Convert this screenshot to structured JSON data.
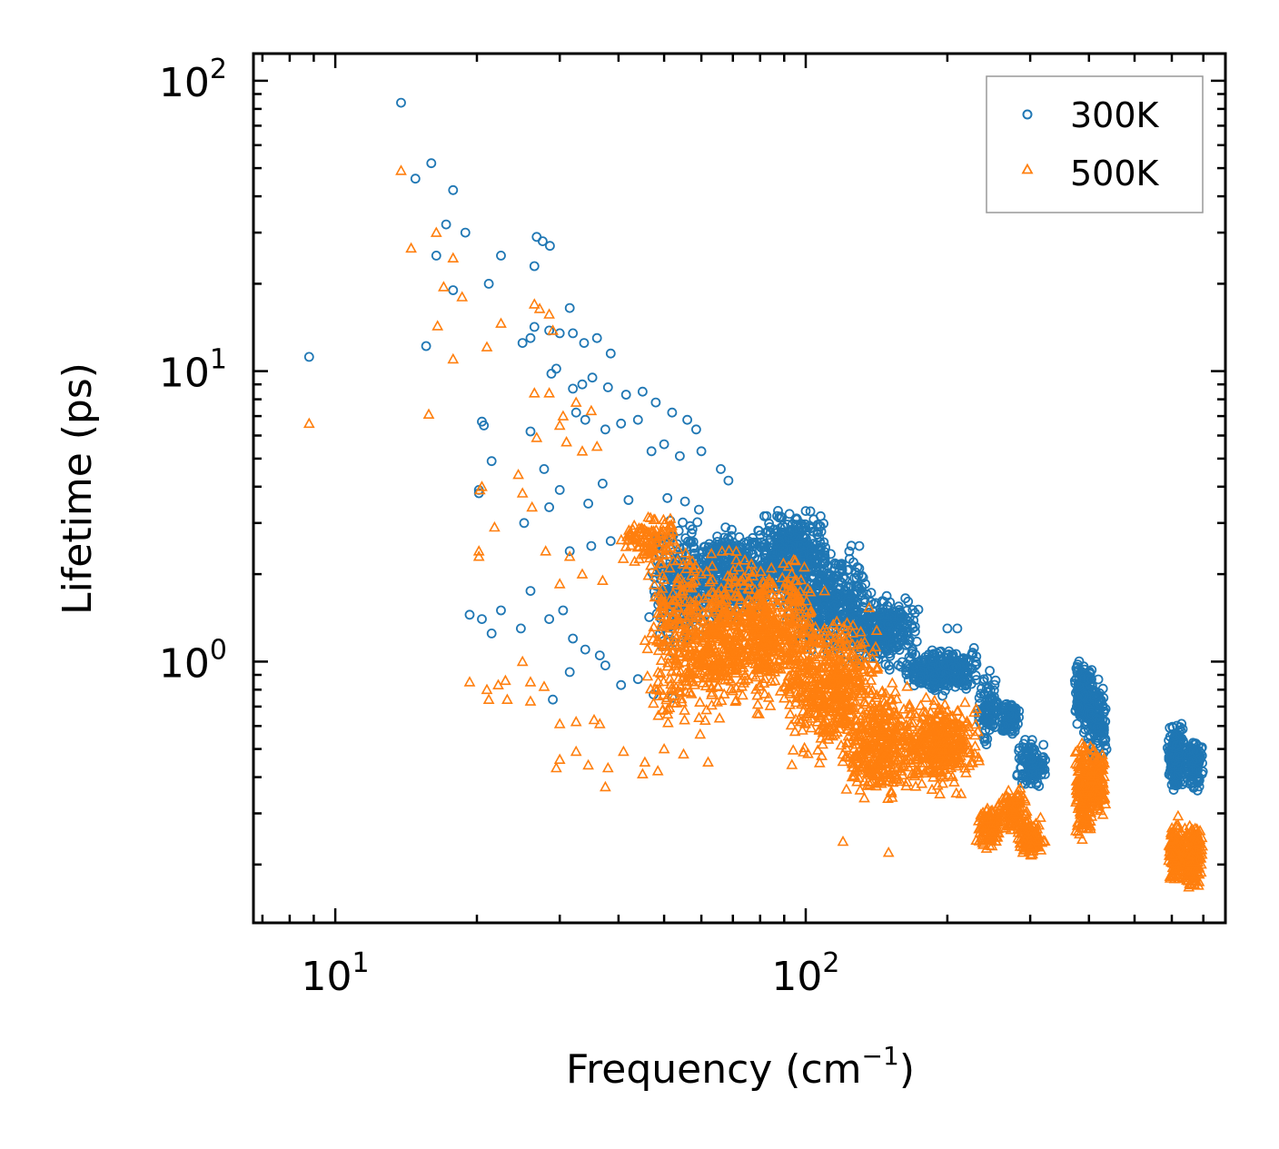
{
  "chart_data": {
    "type": "scatter",
    "title": "",
    "xlabel": "Frequency (cm",
    "xlabel_sup": "−1",
    "xlabel_suffix": ")",
    "ylabel": "Lifetime (ps)",
    "xscale": "log",
    "yscale": "log",
    "xlim": [
      6.7,
      780
    ],
    "ylim": [
      0.126,
      124
    ],
    "xticks": [
      {
        "value": 10,
        "base": "10",
        "exp": "1"
      },
      {
        "value": 100,
        "base": "10",
        "exp": "2"
      }
    ],
    "yticks": [
      {
        "value": 1,
        "base": "10",
        "exp": "0"
      },
      {
        "value": 10,
        "base": "10",
        "exp": "1"
      },
      {
        "value": 100,
        "base": "10",
        "exp": "2"
      }
    ],
    "grid": false,
    "legend_position": "top-right",
    "colors": {
      "s300": "#1f77b4",
      "s500": "#ff7f0e"
    },
    "series": [
      {
        "name": "300K",
        "marker": "circle",
        "color": "#1f77b4",
        "points": [
          [
            8.8,
            11.2
          ],
          [
            13.8,
            84
          ],
          [
            14.8,
            46
          ],
          [
            16.0,
            52
          ],
          [
            17.2,
            32
          ],
          [
            17.8,
            42
          ],
          [
            18.9,
            30
          ],
          [
            16.4,
            25
          ],
          [
            15.6,
            12.2
          ],
          [
            17.8,
            19
          ],
          [
            21.2,
            20
          ],
          [
            22.5,
            25
          ],
          [
            26.5,
            23
          ],
          [
            26.8,
            29
          ],
          [
            27.6,
            28
          ],
          [
            28.6,
            27
          ],
          [
            20.5,
            6.7
          ],
          [
            20.7,
            6.5
          ],
          [
            21.5,
            4.9
          ],
          [
            20.2,
            3.9
          ],
          [
            20.2,
            3.8
          ],
          [
            25.0,
            12.5
          ],
          [
            26.0,
            13
          ],
          [
            26.5,
            14.2
          ],
          [
            28.5,
            13.8
          ],
          [
            30.0,
            13.5
          ],
          [
            31.5,
            16.5
          ],
          [
            32.0,
            13.5
          ],
          [
            33.8,
            12.5
          ],
          [
            36.0,
            13.0
          ],
          [
            38.5,
            11.5
          ],
          [
            29.5,
            10.2
          ],
          [
            28.8,
            9.8
          ],
          [
            32.0,
            8.7
          ],
          [
            33.5,
            9.0
          ],
          [
            35.2,
            9.5
          ],
          [
            38.0,
            8.8
          ],
          [
            41.5,
            8.3
          ],
          [
            45.0,
            8.5
          ],
          [
            32.5,
            7.2
          ],
          [
            34.0,
            6.8
          ],
          [
            37.5,
            6.3
          ],
          [
            40.5,
            6.6
          ],
          [
            44.0,
            6.8
          ],
          [
            48.0,
            7.8
          ],
          [
            52.0,
            7.2
          ],
          [
            56.0,
            6.8
          ],
          [
            58.5,
            6.3
          ],
          [
            47.0,
            5.3
          ],
          [
            50.0,
            5.6
          ],
          [
            54.0,
            5.1
          ],
          [
            60.0,
            5.3
          ],
          [
            66.0,
            4.6
          ],
          [
            68.5,
            4.2
          ],
          [
            26.0,
            6.2
          ],
          [
            25.2,
            3.0
          ],
          [
            27.8,
            4.6
          ],
          [
            28.5,
            3.4
          ],
          [
            30.0,
            3.9
          ],
          [
            34.5,
            3.5
          ],
          [
            37.0,
            4.1
          ],
          [
            42.0,
            3.6
          ],
          [
            31.5,
            2.4
          ],
          [
            35.0,
            2.5
          ],
          [
            38.5,
            2.6
          ],
          [
            28.5,
            1.4
          ],
          [
            30.5,
            1.5
          ],
          [
            32.0,
            1.2
          ],
          [
            34.0,
            1.1
          ],
          [
            36.5,
            1.05
          ],
          [
            19.3,
            1.45
          ],
          [
            20.5,
            1.4
          ],
          [
            21.5,
            1.25
          ],
          [
            22.5,
            1.5
          ],
          [
            24.8,
            1.3
          ],
          [
            26.0,
            1.75
          ],
          [
            29.0,
            0.74
          ],
          [
            31.5,
            0.92
          ],
          [
            37.5,
            0.97
          ],
          [
            40.5,
            0.83
          ],
          [
            44.0,
            0.87
          ],
          [
            47.5,
            0.77
          ],
          [
            52.0,
            0.75
          ],
          [
            100,
            3.3
          ],
          [
            130,
            2.5
          ],
          [
            200,
            1.3
          ],
          [
            210,
            1.3
          ],
          [
            230,
            1.0
          ]
        ],
        "clusters": [
          {
            "x": [
              46,
              62
            ],
            "y": [
              0.9,
              3.8
            ],
            "n": 220
          },
          {
            "x": [
              55,
              85
            ],
            "y": [
              1.2,
              3.2
            ],
            "n": 380
          },
          {
            "x": [
              75,
              115
            ],
            "y": [
              1.5,
              3.5
            ],
            "n": 450
          },
          {
            "x": [
              90,
              140
            ],
            "y": [
              1.0,
              2.6
            ],
            "n": 380
          },
          {
            "x": [
              120,
              175
            ],
            "y": [
              0.9,
              1.8
            ],
            "n": 300
          },
          {
            "x": [
              160,
              235
            ],
            "y": [
              0.75,
              1.15
            ],
            "n": 280
          },
          {
            "x": [
              230,
              260
            ],
            "y": [
              0.5,
              0.95
            ],
            "n": 90
          },
          {
            "x": [
              258,
              285
            ],
            "y": [
              0.55,
              0.75
            ],
            "n": 90
          },
          {
            "x": [
              280,
              325
            ],
            "y": [
              0.35,
              0.56
            ],
            "n": 120
          },
          {
            "x": [
              370,
              410
            ],
            "y": [
              0.55,
              1.08
            ],
            "n": 170
          },
          {
            "x": [
              395,
              440
            ],
            "y": [
              0.42,
              0.95
            ],
            "n": 140
          },
          {
            "x": [
              585,
              640
            ],
            "y": [
              0.33,
              0.66
            ],
            "n": 160
          },
          {
            "x": [
              640,
              700
            ],
            "y": [
              0.35,
              0.56
            ],
            "n": 130
          }
        ]
      },
      {
        "name": "500K",
        "marker": "triangle",
        "color": "#ff7f0e",
        "points": [
          [
            8.8,
            6.6
          ],
          [
            13.8,
            49
          ],
          [
            14.5,
            26.5
          ],
          [
            15.8,
            7.1
          ],
          [
            16.4,
            30
          ],
          [
            17.0,
            19.5
          ],
          [
            17.8,
            24.5
          ],
          [
            18.6,
            18
          ],
          [
            16.5,
            14.3
          ],
          [
            17.8,
            11.0
          ],
          [
            21.0,
            12.1
          ],
          [
            22.5,
            14.6
          ],
          [
            26.5,
            17
          ],
          [
            27.2,
            16.4
          ],
          [
            28.5,
            15.7
          ],
          [
            29.0,
            13.8
          ],
          [
            25.0,
            3.8
          ],
          [
            24.5,
            4.4
          ],
          [
            26.8,
            5.9
          ],
          [
            30.0,
            6.5
          ],
          [
            31.0,
            5.7
          ],
          [
            33.5,
            5.3
          ],
          [
            36.0,
            5.5
          ],
          [
            26.5,
            8.4
          ],
          [
            28.5,
            8.4
          ],
          [
            30.5,
            7.0
          ],
          [
            32.5,
            7.8
          ],
          [
            35.0,
            7.3
          ],
          [
            20.5,
            4.0
          ],
          [
            20.3,
            3.9
          ],
          [
            20.2,
            2.4
          ],
          [
            20.2,
            2.3
          ],
          [
            21.8,
            2.9
          ],
          [
            26.2,
            3.4
          ],
          [
            28.0,
            2.4
          ],
          [
            30.0,
            1.85
          ],
          [
            31.5,
            2.3
          ],
          [
            33.5,
            2.0
          ],
          [
            37.0,
            1.9
          ],
          [
            25.0,
            1.0
          ],
          [
            26.0,
            0.85
          ],
          [
            27.8,
            0.82
          ],
          [
            19.3,
            0.85
          ],
          [
            21.0,
            0.8
          ],
          [
            22.2,
            0.83
          ],
          [
            23.0,
            0.86
          ],
          [
            21.2,
            0.74
          ],
          [
            23.2,
            0.74
          ],
          [
            26.0,
            0.73
          ],
          [
            30.0,
            0.61
          ],
          [
            32.5,
            0.62
          ],
          [
            35.5,
            0.63
          ],
          [
            36.5,
            0.61
          ],
          [
            29.5,
            0.43
          ],
          [
            30.0,
            0.46
          ],
          [
            32.5,
            0.49
          ],
          [
            34.5,
            0.44
          ],
          [
            38.0,
            0.43
          ],
          [
            41.0,
            0.49
          ],
          [
            45.5,
            0.45
          ],
          [
            50.0,
            0.5
          ],
          [
            37.5,
            0.37
          ],
          [
            45.0,
            0.41
          ],
          [
            48.5,
            0.42
          ],
          [
            55.0,
            0.48
          ],
          [
            62.0,
            0.45
          ],
          [
            120,
            0.24
          ],
          [
            150,
            0.22
          ]
        ],
        "clusters": [
          {
            "x": [
              40,
              55
            ],
            "y": [
              2.0,
              3.5
            ],
            "n": 110
          },
          {
            "x": [
              45,
              75
            ],
            "y": [
              0.5,
              2.8
            ],
            "n": 420
          },
          {
            "x": [
              60,
              110
            ],
            "y": [
              0.6,
              2.6
            ],
            "n": 600
          },
          {
            "x": [
              90,
              145
            ],
            "y": [
              0.4,
              1.7
            ],
            "n": 480
          },
          {
            "x": [
              120,
              175
            ],
            "y": [
              0.3,
              0.9
            ],
            "n": 360
          },
          {
            "x": [
              160,
              235
            ],
            "y": [
              0.33,
              0.8
            ],
            "n": 360
          },
          {
            "x": [
              230,
              262
            ],
            "y": [
              0.22,
              0.33
            ],
            "n": 110
          },
          {
            "x": [
              255,
              300
            ],
            "y": [
              0.25,
              0.38
            ],
            "n": 110
          },
          {
            "x": [
              280,
              325
            ],
            "y": [
              0.2,
              0.3
            ],
            "n": 120
          },
          {
            "x": [
              370,
              410
            ],
            "y": [
              0.22,
              0.6
            ],
            "n": 170
          },
          {
            "x": [
              395,
              440
            ],
            "y": [
              0.28,
              0.55
            ],
            "n": 140
          },
          {
            "x": [
              585,
              645
            ],
            "y": [
              0.16,
              0.3
            ],
            "n": 180
          },
          {
            "x": [
              640,
              700
            ],
            "y": [
              0.15,
              0.3
            ],
            "n": 160
          }
        ]
      }
    ]
  }
}
